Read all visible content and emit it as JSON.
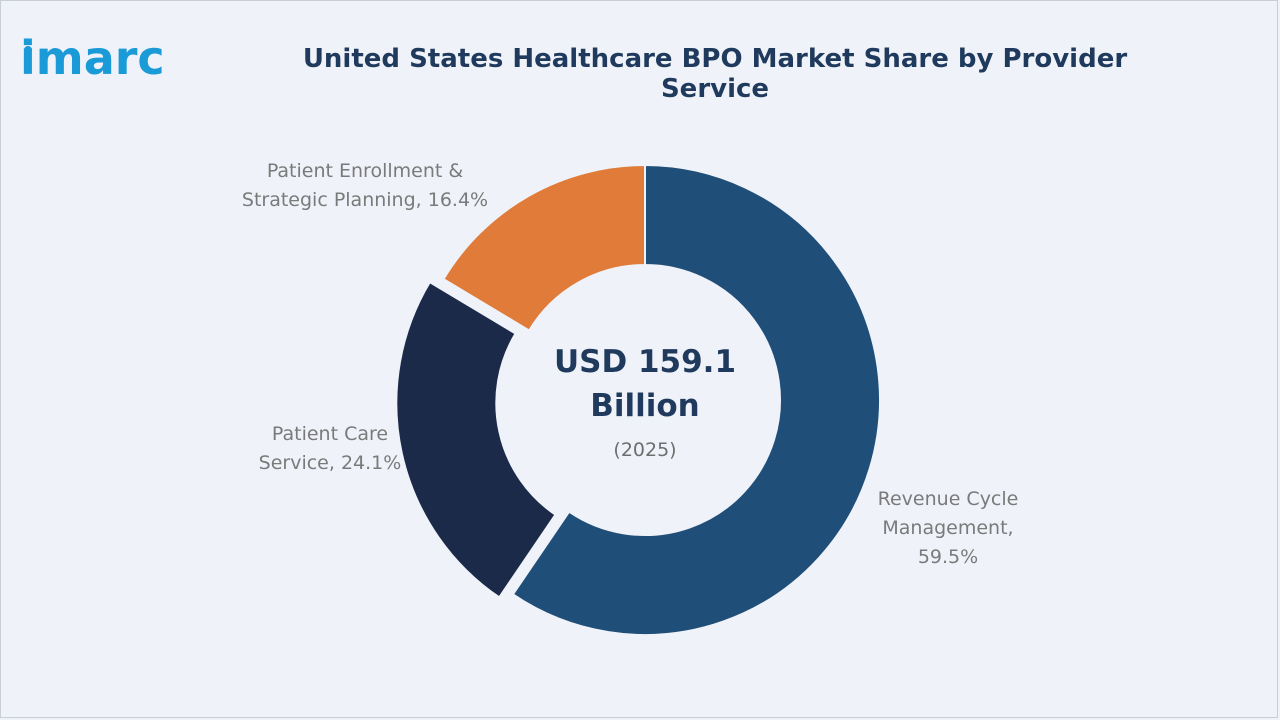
{
  "brand": {
    "logo_text": "imarc",
    "logo_color": "#1a9ad6"
  },
  "header": {
    "title": "United States Healthcare BPO Market Share by Provider Service"
  },
  "center": {
    "value_line1": "USD 159.1",
    "value_line2": "Billion",
    "year": "(2025)"
  },
  "chart_data": {
    "type": "pie",
    "donut": true,
    "title": "United States Healthcare BPO Market Share by Provider Service",
    "unit": "%",
    "slices": [
      {
        "name": "Revenue Cycle Management",
        "value": 59.5,
        "color": "#1f4e79",
        "label_lines": [
          "Revenue Cycle",
          "Management,",
          "59.5%"
        ],
        "exploded": false
      },
      {
        "name": "Patient Care Service",
        "value": 24.1,
        "color": "#1c2a4a",
        "label_lines": [
          "Patient Care",
          "Service, 24.1%"
        ],
        "exploded": true
      },
      {
        "name": "Patient Enrollment & Strategic Planning",
        "value": 16.4,
        "color": "#e07b39",
        "label_lines": [
          "Patient Enrollment &",
          "Strategic Planning, 16.4%"
        ],
        "exploded": false
      }
    ]
  }
}
